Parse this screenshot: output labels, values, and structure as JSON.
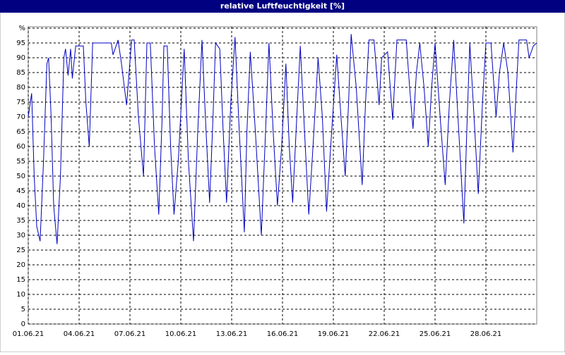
{
  "chart_data": {
    "type": "line",
    "title": "relative Luftfeuchtigkeit [%]",
    "x": [
      0,
      0.2,
      0.35,
      0.5,
      0.7,
      0.9,
      1.1,
      1.2,
      1.35,
      1.5,
      1.7,
      1.9,
      2.1,
      2.2,
      2.35,
      2.5,
      2.6,
      2.8,
      3.25,
      3.4,
      3.6,
      3.8,
      4.9,
      5.0,
      5.3,
      5.5,
      5.8,
      6.1,
      6.25,
      6.5,
      6.8,
      7.0,
      7.2,
      7.45,
      7.7,
      7.9,
      8.0,
      8.2,
      8.4,
      8.6,
      8.85,
      9.2,
      9.45,
      9.75,
      10.0,
      10.25,
      10.45,
      10.7,
      10.9,
      11.05,
      11.3,
      11.5,
      11.7,
      11.95,
      12.2,
      12.45,
      12.75,
      12.9,
      13.1,
      13.4,
      13.75,
      14.0,
      14.2,
      14.45,
      14.7,
      14.95,
      15.2,
      15.4,
      15.6,
      15.8,
      16.05,
      16.3,
      16.55,
      16.8,
      17.1,
      17.35,
      17.6,
      17.9,
      18.2,
      18.45,
      18.7,
      18.9,
      19.05,
      19.35,
      19.7,
      19.9,
      20.1,
      20.4,
      20.7,
      20.85,
      21.2,
      21.5,
      21.75,
      22.3,
      22.5,
      22.7,
      22.9,
      23.1,
      23.35,
      23.6,
      23.8,
      24.0,
      24.3,
      24.6,
      24.85,
      25.1,
      25.4,
      25.7,
      25.9,
      26.05,
      26.3,
      26.55,
      26.8,
      27.0,
      27.3,
      27.6,
      27.8,
      28.05,
      28.3,
      28.6,
      28.8,
      28.95,
      29.4,
      29.55,
      29.8,
      30
    ],
    "series": [
      {
        "color": "#0000c0",
        "values": [
          70,
          78,
          50,
          33,
          28,
          55,
          88,
          90,
          70,
          40,
          27,
          50,
          90,
          93,
          84,
          93,
          83,
          94,
          94,
          75,
          60,
          95,
          95,
          91,
          96,
          88,
          74,
          96,
          96,
          70,
          50,
          95,
          95,
          60,
          37,
          70,
          94,
          94,
          60,
          37,
          55,
          93,
          55,
          28,
          65,
          96,
          70,
          41,
          70,
          95,
          93,
          65,
          41,
          75,
          97,
          65,
          31,
          65,
          92,
          65,
          30,
          65,
          95,
          65,
          40,
          60,
          88,
          60,
          41,
          65,
          94,
          65,
          37,
          60,
          90,
          70,
          38,
          65,
          91,
          70,
          50,
          75,
          98,
          80,
          47,
          75,
          96,
          96,
          74,
          90,
          92,
          69,
          96,
          96,
          80,
          66,
          85,
          95,
          80,
          60,
          80,
          95,
          70,
          47,
          75,
          96,
          65,
          34,
          70,
          95,
          70,
          44,
          75,
          95,
          95,
          70,
          85,
          95,
          85,
          58,
          80,
          96,
          96,
          90,
          94,
          95
        ]
      }
    ],
    "xlim": [
      0,
      30
    ],
    "xticks": [
      {
        "value": 0,
        "label": "01.06.21"
      },
      {
        "value": 3,
        "label": "04.06.21"
      },
      {
        "value": 6,
        "label": "07.06.21"
      },
      {
        "value": 9,
        "label": "10.06.21"
      },
      {
        "value": 12,
        "label": "13.06.21"
      },
      {
        "value": 15,
        "label": "16.06.21"
      },
      {
        "value": 18,
        "label": "19.06.21"
      },
      {
        "value": 21,
        "label": "22.06.21"
      },
      {
        "value": 24,
        "label": "25.06.21"
      },
      {
        "value": 27,
        "label": "28.06.21"
      }
    ],
    "ylim": [
      0,
      100
    ],
    "yticks": [
      0,
      5,
      10,
      15,
      20,
      25,
      30,
      35,
      40,
      45,
      50,
      55,
      60,
      65,
      70,
      75,
      80,
      85,
      90,
      95,
      {
        "value": 100,
        "label": "%"
      }
    ],
    "grid": true
  }
}
